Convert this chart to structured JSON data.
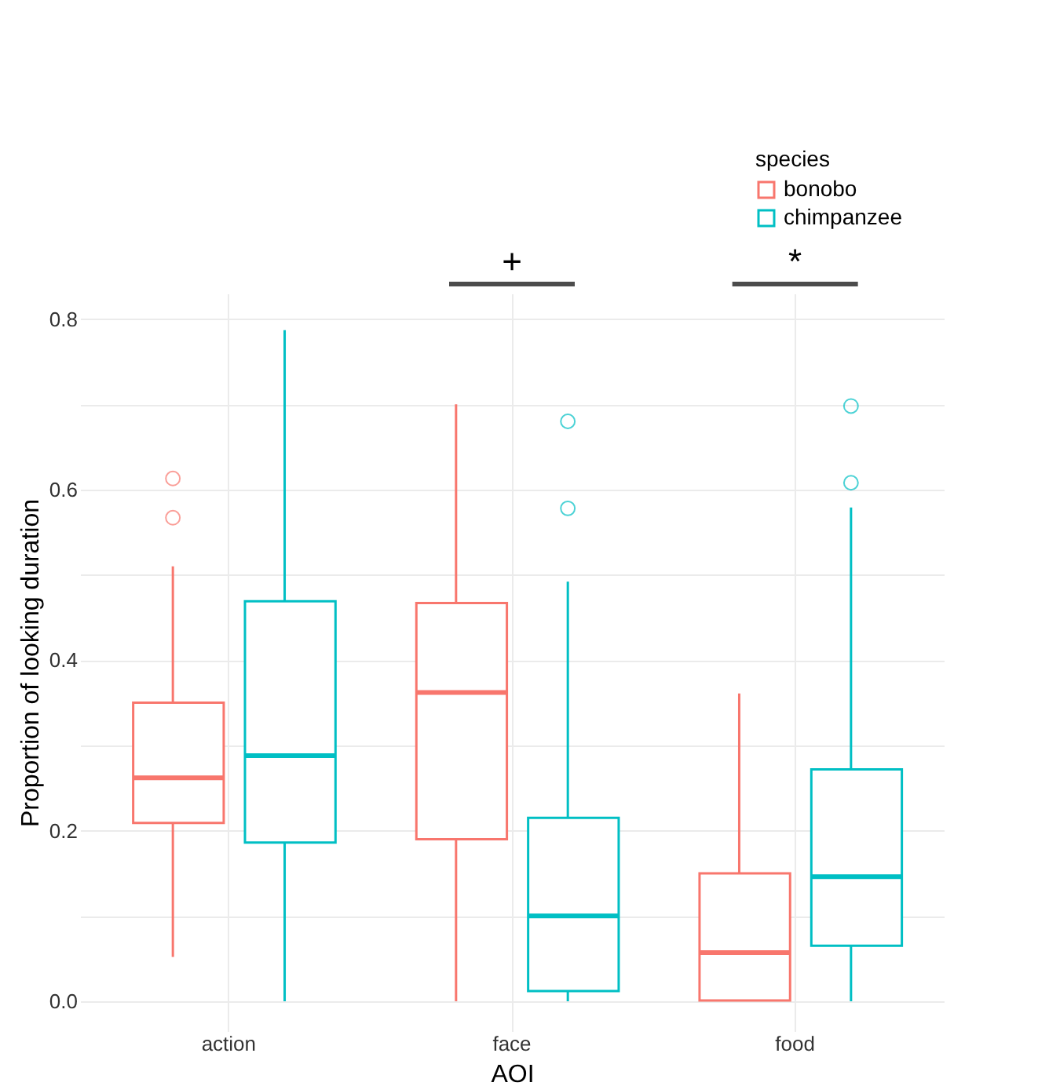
{
  "chart_data": {
    "type": "box",
    "xlabel": "AOI",
    "ylabel": "Proportion of looking duration",
    "legend_title": "species",
    "legend": "top right",
    "grid": true,
    "categories": [
      "action",
      "face",
      "food"
    ],
    "ylim": [
      -0.035,
      0.83
    ],
    "yticks": [
      {
        "value": 0,
        "label": "0.0"
      },
      {
        "value": 0.1,
        "label": null
      },
      {
        "value": 0.2,
        "label": "0.2"
      },
      {
        "value": 0.3,
        "label": null
      },
      {
        "value": 0.4,
        "label": "0.4"
      },
      {
        "value": 0.5,
        "label": null
      },
      {
        "value": 0.6,
        "label": "0.6"
      },
      {
        "value": 0.7,
        "label": null
      },
      {
        "value": 0.8,
        "label": "0.8"
      }
    ],
    "series": [
      {
        "name": "bonobo",
        "color": "#f8766d",
        "boxes": [
          {
            "low": 0.052,
            "q1": 0.209,
            "median": 0.262,
            "q3": 0.35,
            "high": 0.51,
            "outliers": [
              0.613,
              0.567
            ]
          },
          {
            "low": 0.0,
            "q1": 0.19,
            "median": 0.362,
            "q3": 0.467,
            "high": 0.7
          },
          {
            "low": 0.0,
            "q1": 0.001,
            "median": 0.057,
            "q3": 0.15,
            "high": 0.361
          }
        ]
      },
      {
        "name": "chimpanzee",
        "color": "#00bfc4",
        "boxes": [
          {
            "low": 0.0,
            "q1": 0.186,
            "median": 0.288,
            "q3": 0.469,
            "high": 0.787
          },
          {
            "low": 0.0,
            "q1": 0.012,
            "median": 0.1,
            "q3": 0.215,
            "high": 0.492,
            "outliers": [
              0.68,
              0.578
            ]
          },
          {
            "low": 0.0,
            "q1": 0.065,
            "median": 0.146,
            "q3": 0.272,
            "high": 0.579,
            "outliers": [
              0.698,
              0.608
            ]
          }
        ]
      }
    ],
    "annotations": [
      "+",
      "*"
    ]
  }
}
